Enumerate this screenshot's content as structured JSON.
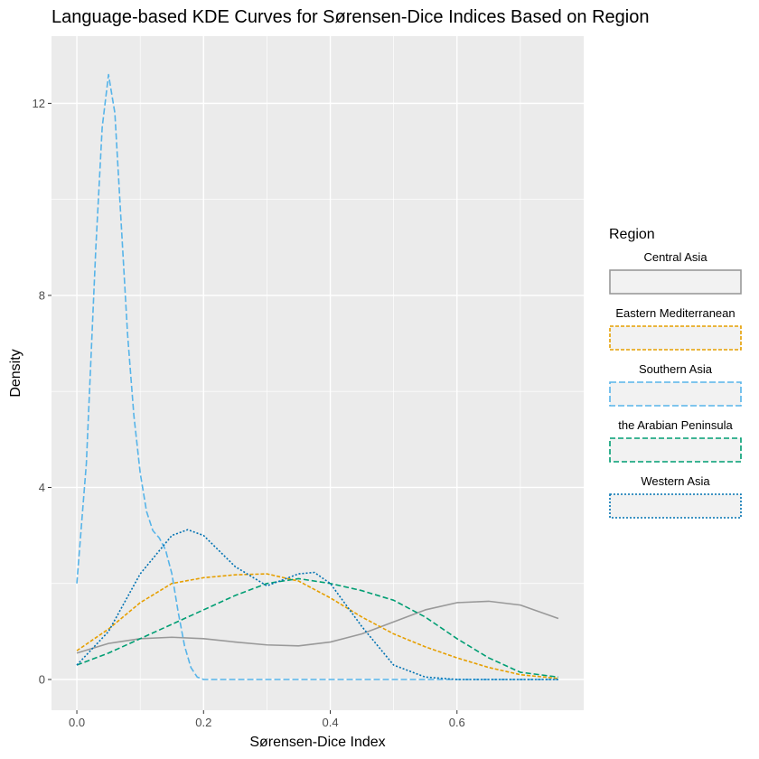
{
  "chart_data": {
    "type": "line",
    "title": "Language-based KDE Curves for Sørensen-Dice Indices Based on Region",
    "xlabel": "Sørensen-Dice Index",
    "ylabel": "Density",
    "xlim": [
      -0.04,
      0.8
    ],
    "ylim": [
      -0.64,
      13.4
    ],
    "xticks": [
      0.0,
      0.2,
      0.4,
      0.6
    ],
    "xtick_labels": [
      "0.0",
      "0.2",
      "0.4",
      "0.6"
    ],
    "yticks": [
      0,
      4,
      8,
      12
    ],
    "ytick_labels": [
      "0",
      "4",
      "8",
      "12"
    ],
    "grid": true,
    "legend_position": "right",
    "legend_title": "Region",
    "panel_color": "#ebebeb",
    "series": [
      {
        "name": "Central Asia",
        "color": "#999999",
        "dash": "solid",
        "x": [
          0.0,
          0.05,
          0.1,
          0.15,
          0.2,
          0.25,
          0.3,
          0.35,
          0.4,
          0.45,
          0.5,
          0.55,
          0.6,
          0.65,
          0.7,
          0.76
        ],
        "y": [
          0.55,
          0.75,
          0.85,
          0.88,
          0.85,
          0.78,
          0.72,
          0.7,
          0.78,
          0.95,
          1.2,
          1.45,
          1.6,
          1.63,
          1.55,
          1.27
        ]
      },
      {
        "name": "Eastern Mediterranean",
        "color": "#e69f00",
        "dash": "4,2",
        "x": [
          0.0,
          0.05,
          0.1,
          0.15,
          0.2,
          0.25,
          0.3,
          0.35,
          0.4,
          0.45,
          0.5,
          0.55,
          0.6,
          0.65,
          0.7,
          0.76
        ],
        "y": [
          0.6,
          1.05,
          1.6,
          2.0,
          2.12,
          2.18,
          2.2,
          2.05,
          1.7,
          1.3,
          0.95,
          0.68,
          0.45,
          0.25,
          0.1,
          0.02
        ]
      },
      {
        "name": "Southern Asia",
        "color": "#56b4e9",
        "dash": "7,3",
        "x": [
          0.0,
          0.015,
          0.03,
          0.04,
          0.05,
          0.06,
          0.07,
          0.08,
          0.09,
          0.1,
          0.11,
          0.12,
          0.13,
          0.14,
          0.15,
          0.16,
          0.17,
          0.18,
          0.19,
          0.2,
          0.25,
          0.3,
          0.4,
          0.5,
          0.6,
          0.7,
          0.76
        ],
        "y": [
          2.0,
          4.5,
          9.0,
          11.5,
          12.6,
          11.8,
          9.5,
          7.2,
          5.5,
          4.3,
          3.5,
          3.1,
          2.95,
          2.7,
          2.2,
          1.4,
          0.7,
          0.25,
          0.05,
          0.0,
          0.0,
          0.0,
          0.0,
          0.0,
          0.0,
          0.0,
          0.0
        ]
      },
      {
        "name": "the Arabian Peninsula",
        "color": "#009e73",
        "dash": "6,3",
        "x": [
          0.0,
          0.05,
          0.1,
          0.15,
          0.2,
          0.25,
          0.3,
          0.35,
          0.4,
          0.45,
          0.5,
          0.55,
          0.6,
          0.65,
          0.7,
          0.76
        ],
        "y": [
          0.3,
          0.55,
          0.85,
          1.15,
          1.45,
          1.75,
          2.0,
          2.1,
          2.0,
          1.85,
          1.65,
          1.3,
          0.85,
          0.45,
          0.15,
          0.05
        ]
      },
      {
        "name": "Western Asia",
        "color": "#0072b2",
        "dash": "2,2",
        "x": [
          0.0,
          0.05,
          0.1,
          0.15,
          0.175,
          0.2,
          0.25,
          0.3,
          0.35,
          0.375,
          0.4,
          0.45,
          0.5,
          0.55,
          0.6,
          0.7,
          0.76
        ],
        "y": [
          0.3,
          1.0,
          2.2,
          3.0,
          3.12,
          3.0,
          2.35,
          1.95,
          2.2,
          2.23,
          2.0,
          1.1,
          0.3,
          0.05,
          0.0,
          0.0,
          0.0
        ]
      }
    ]
  }
}
